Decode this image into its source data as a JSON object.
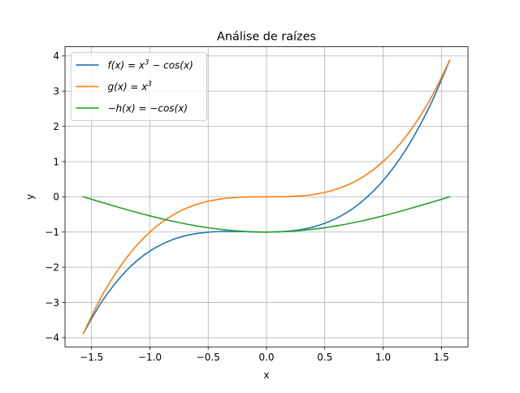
{
  "chart_data": {
    "type": "line",
    "title": "Análise de raízes",
    "xlabel": "x",
    "ylabel": "y",
    "xlim": [
      -1.728,
      1.728
    ],
    "ylim": [
      -4.26,
      4.26
    ],
    "grid": true,
    "legend_position": "top-left",
    "x_ticks": [
      {
        "value": -1.5,
        "label": "−1.5"
      },
      {
        "value": -1.0,
        "label": "−1.0"
      },
      {
        "value": -0.5,
        "label": "−0.5"
      },
      {
        "value": 0.0,
        "label": "0.0"
      },
      {
        "value": 0.5,
        "label": "0.5"
      },
      {
        "value": 1.0,
        "label": "1.0"
      },
      {
        "value": 1.5,
        "label": "1.5"
      }
    ],
    "y_ticks": [
      {
        "value": -4,
        "label": "−4"
      },
      {
        "value": -3,
        "label": "−3"
      },
      {
        "value": -2,
        "label": "−2"
      },
      {
        "value": -1,
        "label": "−1"
      },
      {
        "value": 0,
        "label": "0"
      },
      {
        "value": 1,
        "label": "1"
      },
      {
        "value": 2,
        "label": "2"
      },
      {
        "value": 3,
        "label": "3"
      },
      {
        "value": 4,
        "label": "4"
      }
    ],
    "x": [
      -1.5708,
      -1.4,
      -1.2,
      -1.0,
      -0.8,
      -0.6,
      -0.4,
      -0.2,
      0.0,
      0.2,
      0.4,
      0.6,
      0.8,
      1.0,
      1.2,
      1.4,
      1.5708
    ],
    "series": [
      {
        "name": "f(x) = x³ − cos(x)",
        "legend": {
          "main": "f(x) = x",
          "sup": "3",
          "tail": " − cos(x)"
        },
        "color": "#1f77b4",
        "values": [
          -3.876,
          -2.914,
          -2.09,
          -1.54,
          -1.209,
          -1.041,
          -0.985,
          -0.988,
          -1.0,
          -0.972,
          -0.857,
          -0.609,
          -0.185,
          0.46,
          1.366,
          2.574,
          3.876
        ]
      },
      {
        "name": "g(x) = x³",
        "legend": {
          "main": "g(x) = x",
          "sup": "3",
          "tail": ""
        },
        "color": "#ff7f0e",
        "values": [
          -3.876,
          -2.744,
          -1.728,
          -1.0,
          -0.512,
          -0.216,
          -0.064,
          -0.008,
          0.0,
          0.008,
          0.064,
          0.216,
          0.512,
          1.0,
          1.728,
          2.744,
          3.876
        ]
      },
      {
        "name": "−h(x) = −cos(x)",
        "legend": {
          "main": "−h(x) = −cos(x)",
          "sup": "",
          "tail": ""
        },
        "color": "#2ca02c",
        "values": [
          0.0,
          -0.17,
          -0.362,
          -0.54,
          -0.697,
          -0.825,
          -0.921,
          -0.98,
          -1.0,
          -0.98,
          -0.921,
          -0.825,
          -0.697,
          -0.54,
          -0.362,
          -0.17,
          0.0
        ]
      }
    ]
  }
}
